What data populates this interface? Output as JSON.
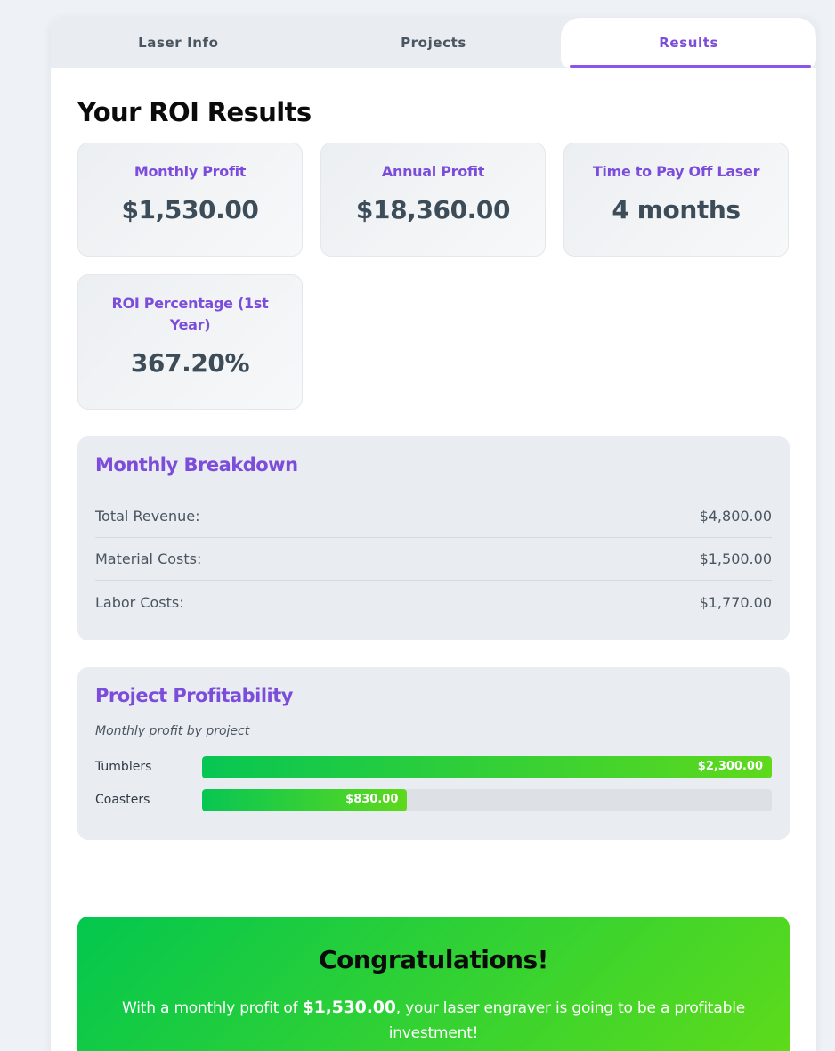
{
  "tabs": [
    {
      "label": "Laser Info",
      "active": false
    },
    {
      "label": "Projects",
      "active": false
    },
    {
      "label": "Results",
      "active": true
    }
  ],
  "results": {
    "title": "Your ROI Results",
    "metrics": [
      {
        "label": "Monthly Profit",
        "value": "$1,530.00"
      },
      {
        "label": "Annual Profit",
        "value": "$18,360.00"
      },
      {
        "label": "Time to Pay Off Laser",
        "value": "4 months"
      },
      {
        "label": "ROI Percentage (1st Year)",
        "value": "367.20%"
      }
    ]
  },
  "breakdown": {
    "title": "Monthly Breakdown",
    "rows": [
      {
        "label": "Total Revenue:",
        "value": "$4,800.00"
      },
      {
        "label": "Material Costs:",
        "value": "$1,500.00"
      },
      {
        "label": "Labor Costs:",
        "value": "$1,770.00"
      }
    ]
  },
  "profitability": {
    "title": "Project Profitability",
    "subtitle": "Monthly profit by project",
    "projects": [
      {
        "name": "Tumblers",
        "value": 2300,
        "label": "$2,300.00",
        "fraction": 1.0
      },
      {
        "name": "Coasters",
        "value": 830,
        "label": "$830.00",
        "fraction": 0.36
      }
    ]
  },
  "congrats": {
    "title": "Congratulations!",
    "text_before": "With a monthly profit of ",
    "profit": "$1,530.00",
    "text_after": ", your laser engraver is going to be a profitable investment!"
  },
  "colors": {
    "accent": "#7c4ddb",
    "success_start": "#03c74e",
    "success_end": "#62dc18"
  }
}
